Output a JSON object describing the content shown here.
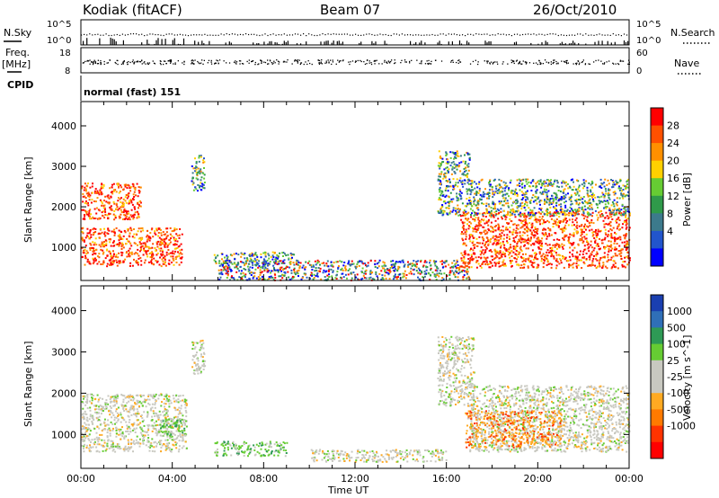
{
  "header": {
    "station": "Kodiak (fitACF)",
    "beam": "Beam 07",
    "date": "26/Oct/2010"
  },
  "top_panels": {
    "nsky_label": "N.Sky",
    "nsearch_label": "N.Search",
    "nsky_ticks": [
      "10^5",
      "10^0"
    ],
    "nsearch_ticks": [
      "10^5",
      "10^0"
    ],
    "freq_label_1": "Freq.",
    "freq_label_2": "[MHz]",
    "freq_ticks": [
      "18",
      "8"
    ],
    "nave_label": "Nave",
    "nave_ticks": [
      "60",
      "0"
    ],
    "cpid_label": "CPID",
    "cpid_value": "normal (fast) 151"
  },
  "chart_data": [
    {
      "type": "heatmap",
      "title": "",
      "xlabel": "",
      "ylabel": "Slant Range [km]",
      "xlim": [
        0,
        24
      ],
      "ylim": [
        180,
        4600
      ],
      "yticks": [
        1000,
        2000,
        3000,
        4000
      ],
      "colorbar": {
        "label": "Power [dB]",
        "ticks": [
          "28",
          "24",
          "20",
          "16",
          "12",
          "8",
          "4"
        ],
        "colors": [
          "#ff0000",
          "#ff5000",
          "#ff9000",
          "#ffd000",
          "#66cc33",
          "#2f9a4a",
          "#3c7a8c",
          "#2255cc",
          "#0000ff"
        ]
      },
      "regions": [
        {
          "t0": 0.0,
          "t1": 4.4,
          "r0": 550,
          "r1": 1500,
          "level": "strong"
        },
        {
          "t0": 0.0,
          "t1": 2.6,
          "r0": 1700,
          "r1": 2600,
          "level": "strong"
        },
        {
          "t0": 4.8,
          "t1": 5.4,
          "r0": 2400,
          "r1": 3300,
          "level": "medium"
        },
        {
          "t0": 5.8,
          "t1": 9.3,
          "r0": 600,
          "r1": 900,
          "level": "medium"
        },
        {
          "t0": 6.0,
          "t1": 17.0,
          "r0": 200,
          "r1": 700,
          "level": "weak"
        },
        {
          "t0": 15.6,
          "t1": 17.0,
          "r0": 1800,
          "r1": 3400,
          "level": "medium"
        },
        {
          "t0": 16.6,
          "t1": 24.0,
          "r0": 500,
          "r1": 1900,
          "level": "strong"
        },
        {
          "t0": 17.0,
          "t1": 24.0,
          "r0": 1800,
          "r1": 2700,
          "level": "medium"
        }
      ]
    },
    {
      "type": "heatmap",
      "title": "",
      "xlabel": "Time UT",
      "ylabel": "Slant Range [km]",
      "xlim": [
        0,
        24
      ],
      "ylim": [
        180,
        4600
      ],
      "yticks": [
        1000,
        2000,
        3000,
        4000
      ],
      "xticks": [
        "00:00",
        "04:00",
        "08:00",
        "12:00",
        "16:00",
        "20:00",
        "00:00"
      ],
      "colorbar": {
        "label": "Velocity [m s^-1]",
        "ticks": [
          "1000",
          "500",
          "100",
          "25",
          "-25",
          "-100",
          "-500",
          "-1000"
        ],
        "colors": [
          "#1a3fb0",
          "#2f6fb8",
          "#2e9a55",
          "#66cc33",
          "#c8c8c0",
          "#c8c8c0",
          "#ffaa22",
          "#ff7a00",
          "#ff3300",
          "#ff0000"
        ]
      },
      "regions": [
        {
          "t0": 0.0,
          "t1": 4.6,
          "r0": 600,
          "r1": 2000,
          "level": "gray"
        },
        {
          "t0": 4.8,
          "t1": 5.4,
          "r0": 2400,
          "r1": 3300,
          "level": "gray"
        },
        {
          "t0": 3.2,
          "t1": 4.6,
          "r0": 1000,
          "r1": 1400,
          "level": "green"
        },
        {
          "t0": 5.8,
          "t1": 9.0,
          "r0": 500,
          "r1": 850,
          "level": "green"
        },
        {
          "t0": 10.0,
          "t1": 16.0,
          "r0": 350,
          "r1": 650,
          "level": "gray"
        },
        {
          "t0": 15.6,
          "t1": 17.2,
          "r0": 1700,
          "r1": 3400,
          "level": "gray"
        },
        {
          "t0": 17.0,
          "t1": 24.0,
          "r0": 600,
          "r1": 2200,
          "level": "gray"
        },
        {
          "t0": 16.8,
          "t1": 21.0,
          "r0": 700,
          "r1": 1600,
          "level": "orange"
        }
      ]
    }
  ]
}
